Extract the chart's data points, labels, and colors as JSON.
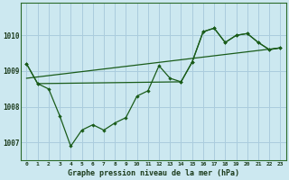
{
  "title": "Graphe pression niveau de la mer (hPa)",
  "bg_color": "#cce8f0",
  "grid_color": "#aaccdd",
  "line_color": "#1a5c1a",
  "xlim": [
    -0.5,
    23.5
  ],
  "ylim": [
    1006.5,
    1010.9
  ],
  "yticks": [
    1007,
    1008,
    1009,
    1010
  ],
  "xtick_labels": [
    "0",
    "1",
    "2",
    "3",
    "4",
    "5",
    "6",
    "7",
    "8",
    "9",
    "10",
    "11",
    "12",
    "13",
    "14",
    "15",
    "16",
    "17",
    "18",
    "19",
    "20",
    "21",
    "22",
    "23"
  ],
  "trend_x": [
    0,
    23
  ],
  "trend_y": [
    1008.8,
    1009.65
  ],
  "line1_x": [
    0,
    1,
    2,
    3,
    4,
    5,
    6,
    7,
    8,
    9,
    10,
    11,
    12,
    13,
    14,
    15,
    16,
    17,
    18,
    19,
    20,
    21,
    22,
    23
  ],
  "line1_y": [
    1009.2,
    1008.65,
    1008.5,
    1007.75,
    1006.9,
    1007.35,
    1007.5,
    1007.35,
    1007.55,
    1007.7,
    1008.3,
    1008.45,
    1009.15,
    1008.8,
    1008.7,
    1009.25,
    1010.1,
    1010.2,
    1009.8,
    1010.0,
    1010.05,
    1009.8,
    1009.6,
    1009.65
  ],
  "line2_x": [
    0,
    1,
    14,
    15,
    16,
    17,
    18,
    19,
    20,
    21,
    22,
    23
  ],
  "line2_y": [
    1009.2,
    1008.65,
    1008.7,
    1009.25,
    1010.1,
    1010.2,
    1009.8,
    1010.0,
    1010.05,
    1009.8,
    1009.6,
    1009.65
  ]
}
